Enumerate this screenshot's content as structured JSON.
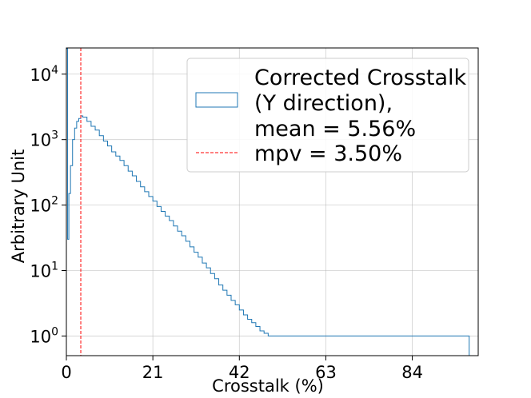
{
  "chart_data": {
    "type": "histogram",
    "title": "",
    "xlabel": "Crosstalk (%)",
    "ylabel": "Arbitrary Unit",
    "xlim": [
      0,
      100
    ],
    "ylim_log10": [
      -0.3,
      4.4
    ],
    "yscale": "log",
    "grid": true,
    "x_ticks": [
      {
        "value": 0,
        "label": "0"
      },
      {
        "value": 21,
        "label": "21"
      },
      {
        "value": 42,
        "label": "42"
      },
      {
        "value": 63,
        "label": "63"
      },
      {
        "value": 84,
        "label": "84"
      }
    ],
    "y_ticks": [
      {
        "exp": 0,
        "base": "10",
        "power": "0"
      },
      {
        "exp": 1,
        "base": "10",
        "power": "1"
      },
      {
        "exp": 2,
        "base": "10",
        "power": "2"
      },
      {
        "exp": 3,
        "base": "10",
        "power": "3"
      },
      {
        "exp": 4,
        "base": "10",
        "power": "4"
      }
    ],
    "series": [
      {
        "name": "Corrected Crosstalk (Y direction), mean = 5.56%",
        "kind": "step-histogram",
        "color": "#1f77b4",
        "points": [
          [
            0,
            25000
          ],
          [
            0.3,
            30
          ],
          [
            0.6,
            150
          ],
          [
            1.0,
            400
          ],
          [
            1.5,
            1000
          ],
          [
            2.0,
            1500
          ],
          [
            2.5,
            1900
          ],
          [
            3.0,
            2100
          ],
          [
            3.5,
            2300
          ],
          [
            4.0,
            2200
          ],
          [
            5,
            1900
          ],
          [
            6,
            1600
          ],
          [
            7,
            1400
          ],
          [
            8,
            1150
          ],
          [
            9,
            950
          ],
          [
            10,
            800
          ],
          [
            11,
            650
          ],
          [
            12,
            560
          ],
          [
            13,
            480
          ],
          [
            14,
            400
          ],
          [
            15,
            330
          ],
          [
            16,
            280
          ],
          [
            17,
            230
          ],
          [
            18,
            190
          ],
          [
            19,
            160
          ],
          [
            20,
            135
          ],
          [
            21,
            115
          ],
          [
            22,
            95
          ],
          [
            23,
            80
          ],
          [
            24,
            68
          ],
          [
            25,
            58
          ],
          [
            26,
            48
          ],
          [
            27,
            40
          ],
          [
            28,
            34
          ],
          [
            29,
            28
          ],
          [
            30,
            23
          ],
          [
            31,
            19
          ],
          [
            32,
            16
          ],
          [
            33,
            13
          ],
          [
            34,
            11
          ],
          [
            35,
            9
          ],
          [
            36,
            7.5
          ],
          [
            37,
            6
          ],
          [
            38,
            5
          ],
          [
            39,
            4.2
          ],
          [
            40,
            3.5
          ],
          [
            41,
            3
          ],
          [
            42,
            2.5
          ],
          [
            43,
            2.1
          ],
          [
            44,
            1.8
          ],
          [
            45,
            1.6
          ],
          [
            46,
            1.4
          ],
          [
            47,
            1.2
          ],
          [
            48,
            1.1
          ],
          [
            49,
            1.0
          ],
          [
            50,
            1.0
          ],
          [
            52,
            1.0
          ],
          [
            55,
            1.0
          ],
          [
            58,
            1.0
          ],
          [
            60,
            1.0
          ],
          [
            63,
            1.0
          ],
          [
            65,
            1.0
          ],
          [
            68,
            1.0
          ],
          [
            70,
            1.0
          ],
          [
            73,
            1.0
          ],
          [
            75,
            1.0
          ],
          [
            77,
            1.0
          ],
          [
            80,
            1.0
          ],
          [
            83,
            1.0
          ],
          [
            86,
            1.0
          ],
          [
            88,
            1.0
          ],
          [
            91,
            1.0
          ],
          [
            93,
            1.0
          ],
          [
            95,
            1.0
          ],
          [
            97,
            1.0
          ]
        ]
      },
      {
        "name": "mpv = 3.50%",
        "kind": "vline",
        "x": 3.5,
        "color": "#ff0000",
        "style": "dashed"
      }
    ],
    "legend": {
      "placement": "top-right",
      "entries": [
        {
          "lines": [
            "Corrected Crosstalk",
            "(Y direction),",
            "mean = 5.56%"
          ],
          "style": "box",
          "color": "#1f77b4"
        },
        {
          "lines": [
            "mpv = 3.50%"
          ],
          "style": "dashed-line",
          "color": "#ff0000"
        }
      ]
    }
  }
}
